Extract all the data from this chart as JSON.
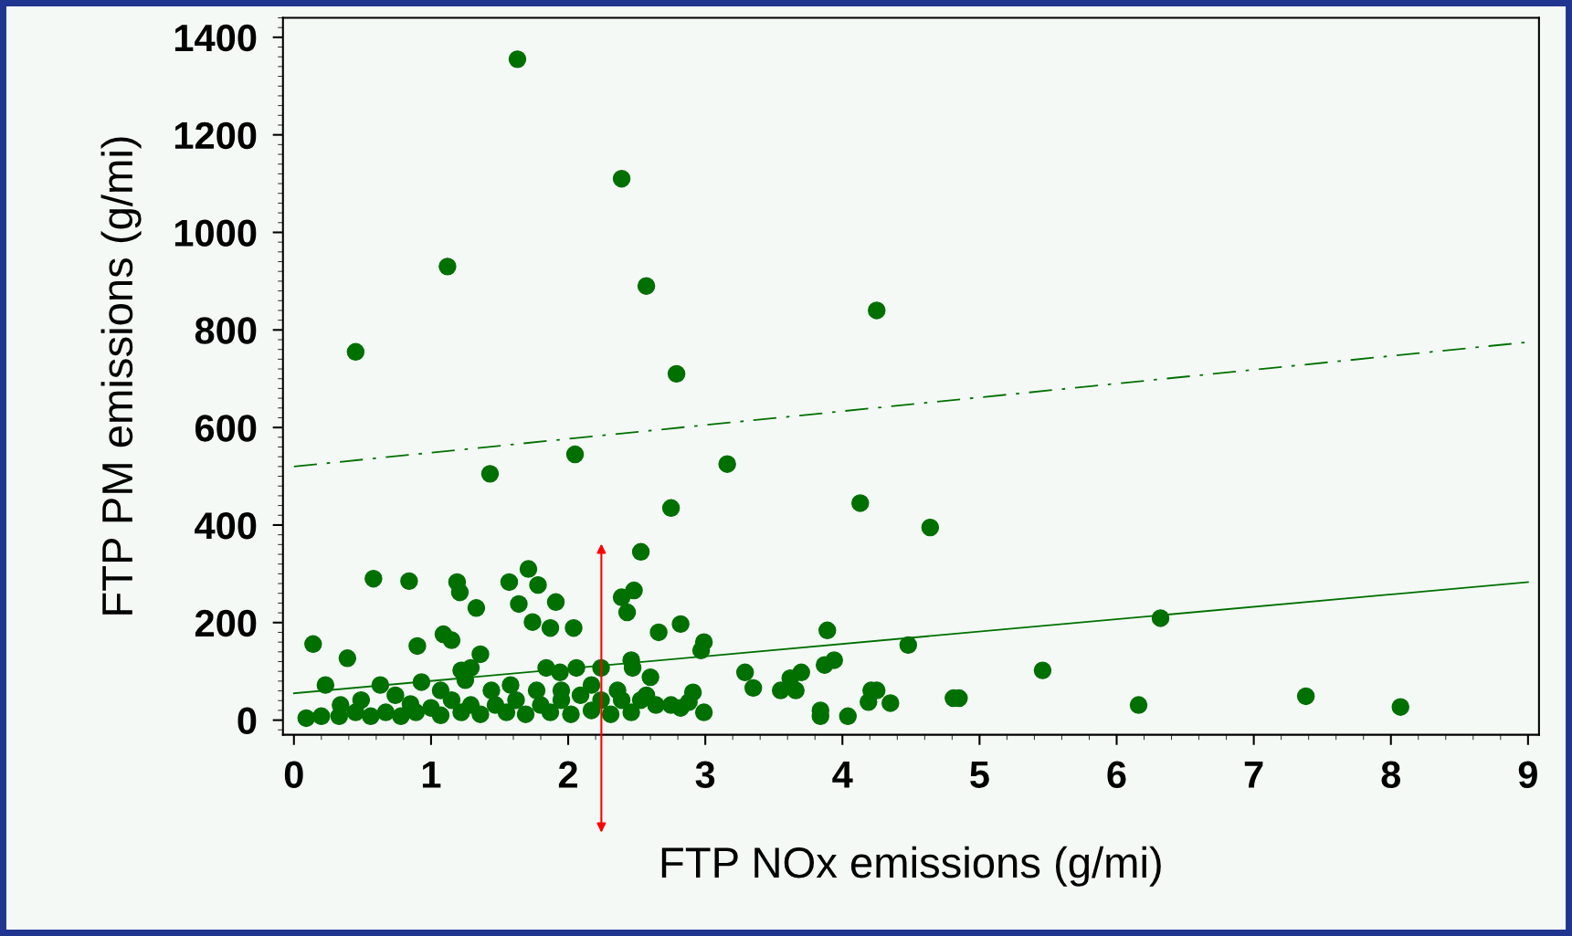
{
  "chart_data": {
    "type": "scatter",
    "xlabel": "FTP NOx emissions (g/mi)",
    "ylabel": "FTP PM emissions (g/mi)",
    "xlim": [
      -0.08,
      9.08
    ],
    "ylim": [
      -30,
      1440
    ],
    "xticks": [
      0,
      1,
      2,
      3,
      4,
      5,
      6,
      7,
      8,
      9
    ],
    "yticks": [
      0,
      200,
      400,
      600,
      800,
      1000,
      1200,
      1400
    ],
    "grid": false,
    "series": [
      {
        "color": "#007000",
        "marker": "circle",
        "x": [
          1.63,
          2.39,
          1.12,
          2.57,
          4.25,
          0.45,
          2.79,
          2.05,
          1.43,
          3.16,
          2.75,
          4.13,
          4.64,
          2.53,
          1.71,
          0.58,
          0.84,
          1.19,
          1.21,
          1.57,
          1.78,
          1.33,
          1.64,
          1.91,
          1.74,
          1.87,
          2.04,
          2.39,
          2.48,
          2.43,
          2.66,
          2.82,
          2.99,
          2.97,
          3.89,
          0.14,
          0.39,
          1.09,
          1.15,
          0.9,
          1.36,
          4.48,
          6.32,
          5.46,
          6.16,
          7.38,
          8.07,
          3.29,
          3.35,
          3.7,
          3.55,
          3.62,
          3.66,
          3.94,
          3.87,
          3.84,
          3.84,
          4.04,
          4.21,
          4.19,
          4.25,
          4.35,
          4.81,
          4.85,
          2.46,
          2.47,
          2.6,
          2.06,
          2.24,
          1.84,
          1.94,
          1.29,
          0.93,
          0.63,
          0.23,
          2.91,
          2.88,
          2.99,
          0.09,
          0.2,
          0.33,
          0.45,
          0.56,
          0.67,
          0.78,
          0.85,
          0.89,
          1.0,
          1.07,
          1.15,
          1.22,
          1.29,
          1.36,
          1.44,
          1.47,
          1.55,
          1.62,
          1.69,
          1.77,
          1.8,
          1.87,
          1.95,
          2.02,
          2.09,
          2.17,
          2.24,
          2.31,
          2.39,
          2.46,
          2.53,
          2.64,
          2.75,
          2.82,
          0.49,
          0.34,
          0.74,
          1.07,
          1.25,
          1.58,
          1.95,
          2.17,
          2.36,
          2.57,
          1.22
        ],
        "values": [
          1355,
          1110,
          930,
          890,
          840,
          755,
          710,
          545,
          505,
          525,
          435,
          445,
          395,
          345,
          310,
          290,
          285,
          283,
          262,
          283,
          277,
          230,
          238,
          242,
          201,
          189,
          189,
          252,
          266,
          221,
          180,
          197,
          160,
          143,
          184,
          156,
          127,
          176,
          164,
          152,
          135,
          154,
          209,
          102,
          31,
          49,
          27,
          98,
          66,
          98,
          61,
          86,
          61,
          123,
          113,
          20,
          8,
          8,
          61,
          37,
          61,
          35,
          45,
          45,
          123,
          107,
          88,
          107,
          107,
          107,
          98,
          107,
          78,
          72,
          72,
          57,
          37,
          16,
          4,
          8,
          8,
          16,
          8,
          16,
          8,
          33,
          16,
          25,
          10,
          41,
          16,
          31,
          12,
          61,
          31,
          16,
          41,
          12,
          61,
          31,
          16,
          41,
          12,
          51,
          20,
          41,
          12,
          41,
          16,
          41,
          31,
          31,
          25,
          41,
          31,
          51,
          61,
          82,
          72,
          61,
          72,
          61,
          51,
          102
        ]
      },
      {
        "type": "line",
        "color": "#007000",
        "line_style": "solid",
        "marker": "none",
        "x": [
          0,
          9
        ],
        "values": [
          55,
          283
        ]
      },
      {
        "type": "line",
        "color": "#007000",
        "line_style": "dashed",
        "marker": "none",
        "x": [
          0,
          9
        ],
        "values": [
          520,
          775
        ]
      }
    ]
  }
}
